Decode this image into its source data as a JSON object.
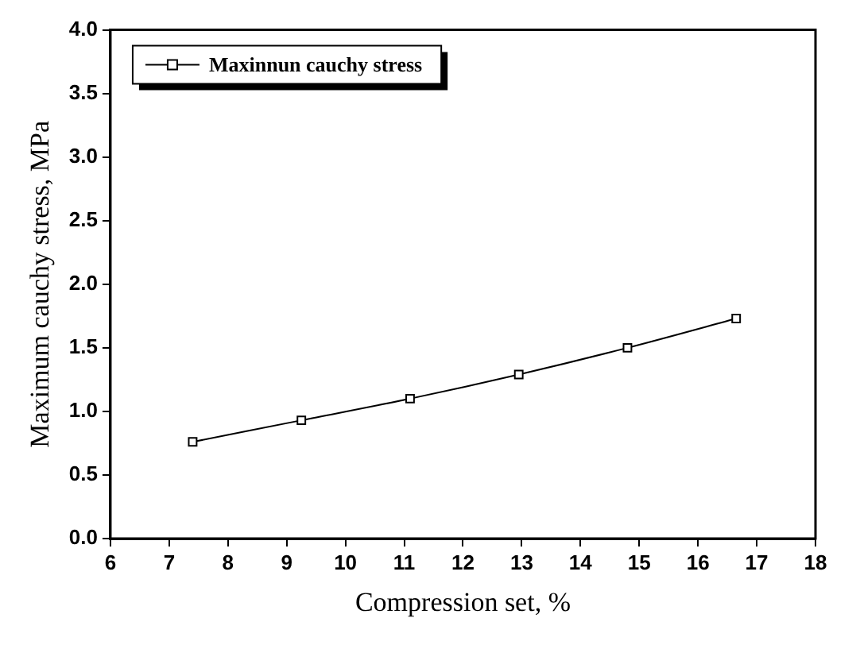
{
  "chart_data": {
    "type": "line",
    "xlabel": "Compression set, %",
    "ylabel": "Maximum cauchy stress, MPa",
    "x": [
      7.4,
      9.25,
      11.1,
      12.95,
      14.8,
      16.65
    ],
    "series": [
      {
        "name": "Maxinnun cauchy stress",
        "color": "#000000",
        "values": [
          0.76,
          0.93,
          1.1,
          1.29,
          1.5,
          1.73
        ]
      }
    ],
    "xlim": [
      6,
      18
    ],
    "xticks": [
      6,
      7,
      8,
      9,
      10,
      11,
      12,
      13,
      14,
      15,
      16,
      17,
      18
    ],
    "ylim": [
      0,
      4
    ],
    "yticks": [
      {
        "value": 0,
        "label": "0.0"
      },
      {
        "value": 0.5,
        "label": "0.5"
      },
      {
        "value": 1,
        "label": "1.0"
      },
      {
        "value": 1.5,
        "label": "1.5"
      },
      {
        "value": 2,
        "label": "2.0"
      },
      {
        "value": 2.5,
        "label": "2.5"
      },
      {
        "value": 3,
        "label": "3.0"
      },
      {
        "value": 3.5,
        "label": "3.5"
      },
      {
        "value": 4,
        "label": "4.0"
      }
    ],
    "grid": false,
    "legend": "top left",
    "marker": "square",
    "line_style": "solid"
  }
}
